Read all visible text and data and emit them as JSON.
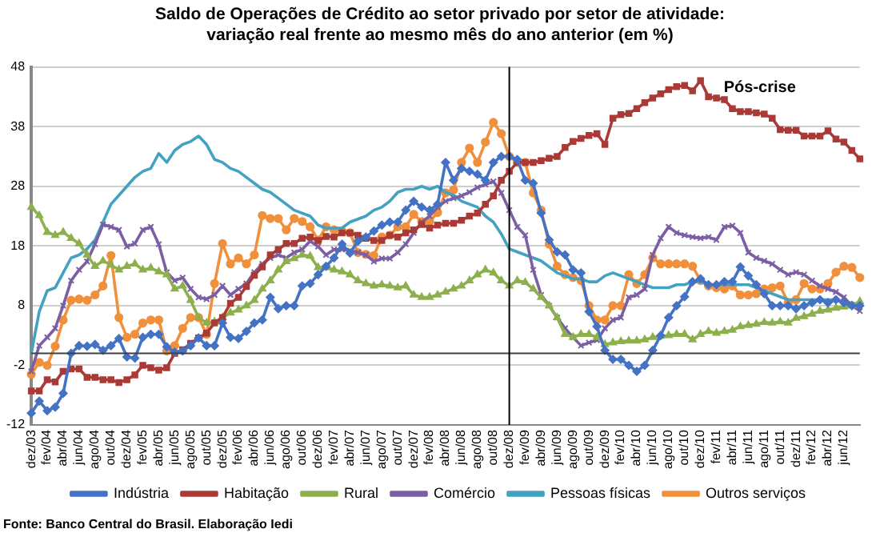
{
  "chart_data": {
    "type": "line",
    "title": "Saldo de Operações de Crédito ao setor privado por setor de atividade: variação real  frente ao mesmo mês do ano anterior (em %)",
    "categories": [
      "dez/03",
      null,
      "fev/04",
      null,
      "abr/04",
      null,
      "jun/04",
      null,
      "ago/04",
      null,
      "out/04",
      null,
      "dez/04",
      null,
      "fev/05",
      null,
      "abr/05",
      null,
      "jun/05",
      null,
      "ago/05",
      null,
      "out/05",
      null,
      "dez/05",
      null,
      "fev/06",
      null,
      "abr/06",
      null,
      "jun/06",
      null,
      "ago/06",
      null,
      "out/06",
      null,
      "dez/06",
      null,
      "fev/07",
      null,
      "abr/07",
      null,
      "jun/07",
      null,
      "ago/07",
      null,
      "out/07",
      null,
      "dez/07",
      null,
      "fev/08",
      null,
      "abr/08",
      null,
      "jun/08",
      null,
      "ago/08",
      null,
      "out/08",
      null,
      "dez/08",
      null,
      "fev/09",
      null,
      "abr/09",
      null,
      "jun/09",
      null,
      "ago/09",
      null,
      "out/09",
      null,
      "dez/09",
      null,
      "fev/10",
      null,
      "abr/10",
      null,
      "jun/10",
      null,
      "ago/10",
      null,
      "out/10",
      null,
      "dez/10",
      null,
      "fev/11",
      null,
      "abr/11",
      null,
      "jun/11",
      null,
      "ago/11",
      null,
      "out/11",
      null,
      "dez/11",
      null,
      "fev/12",
      null,
      "abr/12",
      null,
      "jun/12",
      null,
      null
    ],
    "series": [
      {
        "name": "Indústria",
        "color": "#4472c4",
        "marker": "diamond",
        "values": [
          -10,
          -8,
          -9.6,
          -9,
          -6.7,
          0,
          1.3,
          1.2,
          1.5,
          0.5,
          1.3,
          2.5,
          -0.6,
          -0.8,
          2.7,
          3.2,
          3.2,
          1.1,
          0.2,
          0.4,
          1.3,
          2.6,
          1.3,
          1.3,
          5.1,
          2.7,
          2.5,
          3.7,
          5.1,
          5.6,
          9.4,
          7.5,
          8,
          8,
          11.3,
          11.7,
          13.2,
          14.6,
          16,
          18.3,
          16.8,
          18.8,
          19.5,
          20.5,
          21.5,
          22,
          22,
          24,
          25.5,
          24.5,
          24,
          25,
          32,
          29,
          31,
          30.5,
          30,
          29,
          32,
          33,
          33,
          32.5,
          29,
          28.5,
          23.5,
          19,
          17,
          16.5,
          14,
          13.5,
          7,
          4.5,
          0.5,
          -1,
          -1,
          -2,
          -3,
          -2,
          0.5,
          3,
          6,
          8,
          9.5,
          12,
          12.5,
          11.5,
          11.5,
          12,
          12,
          14.5,
          13,
          11.5,
          10,
          8,
          8,
          8,
          7.5,
          8,
          8.5,
          9,
          8.5,
          9,
          8.5,
          8,
          8
        ]
      },
      {
        "name": "Habitação",
        "color": "#aa3a36",
        "marker": "square",
        "values": [
          -6.3,
          -6.3,
          -4.4,
          -4.8,
          -3,
          -2.6,
          -2.6,
          -4,
          -4,
          -4.4,
          -4.4,
          -4.9,
          -4.4,
          -3.6,
          -2,
          -2.4,
          -2.8,
          -2.4,
          0,
          0.6,
          1.7,
          2.6,
          3.4,
          5.1,
          6,
          8.4,
          9.4,
          11.2,
          13.1,
          14.5,
          16.5,
          17.4,
          18.4,
          18.4,
          19.3,
          19.5,
          18.9,
          19.6,
          19.5,
          20.2,
          20.2,
          19.8,
          19.3,
          18.9,
          18.9,
          19.8,
          19.5,
          20.2,
          20.7,
          21.6,
          21,
          21.5,
          21.8,
          21.8,
          22.3,
          23,
          23.5,
          25,
          26.4,
          29,
          30.5,
          32,
          32,
          32,
          32.3,
          32.7,
          33,
          34.5,
          35.5,
          36,
          36.5,
          36.8,
          35,
          39.4,
          40,
          40.2,
          41,
          42,
          42.8,
          43.5,
          44.2,
          44.7,
          44.9,
          44,
          45.7,
          43,
          42.8,
          42.5,
          41,
          40.5,
          40.5,
          40.3,
          40.1,
          39.4,
          37.5,
          37.4,
          37.4,
          36.4,
          36.4,
          36.4,
          37.3,
          35.9,
          35.4,
          34,
          32.6
        ]
      },
      {
        "name": "Rural",
        "color": "#8db04c",
        "marker": "triangle",
        "values": [
          24.5,
          23.1,
          20.3,
          19.8,
          20.3,
          19.3,
          18.4,
          16.5,
          14.6,
          15.5,
          14.8,
          14,
          14.6,
          15,
          14,
          14.3,
          13.7,
          13.2,
          10.8,
          11.3,
          8.9,
          6,
          5.1,
          5.3,
          6,
          6.8,
          7.3,
          8,
          8.9,
          10.8,
          12.2,
          14,
          15.4,
          15.9,
          16.5,
          16.3,
          14.4,
          14.4,
          14,
          13.7,
          13.2,
          12.2,
          11.7,
          11.3,
          11.5,
          11.3,
          11,
          11.3,
          9.8,
          9.4,
          9.4,
          9.8,
          10.3,
          10.8,
          11.3,
          12.2,
          13.2,
          14,
          13.5,
          12.2,
          11.3,
          12.2,
          11.9,
          10.8,
          9.4,
          8,
          6,
          3.2,
          2.7,
          3.2,
          3.2,
          2.7,
          1.5,
          1.8,
          2,
          2.1,
          2.1,
          2.3,
          2.7,
          2.9,
          3,
          3.2,
          3.2,
          2.3,
          3.2,
          3.7,
          3.4,
          3.7,
          3.9,
          4.5,
          4.7,
          4.9,
          5.2,
          5.1,
          5.3,
          5.1,
          5.9,
          6.2,
          6.6,
          7.1,
          7.3,
          7.6,
          7.8,
          8,
          8.7
        ]
      },
      {
        "name": "Comércio",
        "color": "#7b5ea3",
        "marker": "cross",
        "values": [
          -3,
          1.3,
          2.7,
          4.2,
          8,
          12.2,
          14,
          15.4,
          18.3,
          21.6,
          21.2,
          20.7,
          17.9,
          18.4,
          20.7,
          21.2,
          18.3,
          13.6,
          12.2,
          12.7,
          10.8,
          9.4,
          9.1,
          9.8,
          11.3,
          9.8,
          10.8,
          11.7,
          13.6,
          15,
          16,
          16.5,
          16,
          16.9,
          17.4,
          18.8,
          17.9,
          16.5,
          17.4,
          17.4,
          17.2,
          16.9,
          16.5,
          15.4,
          15.9,
          15.9,
          16.9,
          18.3,
          20.2,
          22,
          23,
          24.5,
          25.5,
          26,
          26.4,
          27,
          27.8,
          28.3,
          28.8,
          26.9,
          24,
          21.2,
          19.8,
          14,
          9.8,
          8,
          6,
          4.2,
          2.7,
          1.3,
          1.8,
          2.2,
          4.2,
          5.6,
          6,
          9.4,
          9.8,
          10.8,
          16.5,
          19.3,
          21.2,
          20.2,
          19.8,
          19.5,
          19.3,
          19.5,
          19,
          21.2,
          21.4,
          20.2,
          16.9,
          16,
          15.5,
          15,
          14,
          13.2,
          13.6,
          13.2,
          12.2,
          11.3,
          10.8,
          10.3,
          9.4,
          8,
          7.1
        ]
      },
      {
        "name": "Pessoas físicas",
        "color": "#43a2c2",
        "marker": "none",
        "values": [
          0,
          7,
          10.5,
          11,
          13.5,
          16,
          16.5,
          17.5,
          19,
          22,
          25,
          26.5,
          28,
          29.5,
          30.5,
          31,
          33.5,
          32,
          34,
          35,
          35.5,
          36.4,
          35,
          32.5,
          32,
          31,
          30.5,
          29.5,
          28.5,
          27.5,
          27,
          26,
          25,
          24,
          23.5,
          23,
          21.5,
          21,
          21,
          21,
          22,
          22.5,
          23,
          24,
          24.5,
          25.5,
          27,
          27.5,
          27.5,
          28,
          27.5,
          28,
          27,
          26.5,
          25.5,
          25,
          24.5,
          23,
          22,
          20,
          17.5,
          17,
          16.5,
          16,
          15.5,
          14.5,
          13.5,
          13,
          12.5,
          12.5,
          12,
          12,
          13,
          13.5,
          13,
          12.5,
          12,
          11.5,
          11,
          11,
          11,
          11.5,
          11.5,
          12,
          12,
          11.5,
          11.5,
          11.5,
          11.5,
          11.5,
          11.5,
          11,
          10.5,
          10,
          9.5,
          9,
          9,
          9,
          9,
          9,
          9,
          9,
          8.5,
          8.5,
          8
        ]
      },
      {
        "name": "Outros serviços",
        "color": "#f0903c",
        "marker": "circle",
        "values": [
          -3.5,
          -1.5,
          -2,
          1.2,
          5.6,
          8.9,
          9.1,
          8.9,
          9.8,
          11.3,
          16.4,
          6,
          2.7,
          3.2,
          5.1,
          5.6,
          5.6,
          0.4,
          1.3,
          4.2,
          6,
          6,
          3.2,
          11.7,
          18.4,
          15,
          16,
          15,
          16.5,
          23.1,
          22.6,
          22.6,
          20.7,
          22.6,
          22.1,
          21.2,
          19,
          21.2,
          20.7,
          20.5,
          20.2,
          16.9,
          16.6,
          16.4,
          19.5,
          19.8,
          21.2,
          21.2,
          23.3,
          22.1,
          22.1,
          23.6,
          26.9,
          27.4,
          32,
          34.4,
          32,
          35.4,
          38.7,
          36.8,
          33,
          32,
          32,
          26.9,
          24,
          18.3,
          14.6,
          13.2,
          12.7,
          12.2,
          8,
          5.6,
          5.6,
          8,
          8,
          13.2,
          11.7,
          13.2,
          16,
          15,
          15,
          15,
          15,
          14.6,
          12.2,
          11.3,
          11,
          10.8,
          11.3,
          9.8,
          9.8,
          10,
          10.8,
          11,
          11.3,
          8.5,
          9,
          11.7,
          10.8,
          10.8,
          11.7,
          13.6,
          14.6,
          14.4,
          12.7
        ]
      }
    ],
    "ylim": [
      -12,
      48
    ],
    "yticks": [
      -12,
      -2,
      8,
      18,
      28,
      38,
      48
    ],
    "grid": "y",
    "legend": "bottom",
    "line_style": "solid",
    "ref_lines": [
      {
        "axis": "y",
        "value": 0,
        "color": "#404040"
      },
      {
        "axis": "x",
        "value": "dez/08",
        "color": "#000000"
      }
    ],
    "annotations": [
      "Pós-crise",
      "Fonte: Banco Central do Brasil. Elaboração Iedi"
    ]
  }
}
